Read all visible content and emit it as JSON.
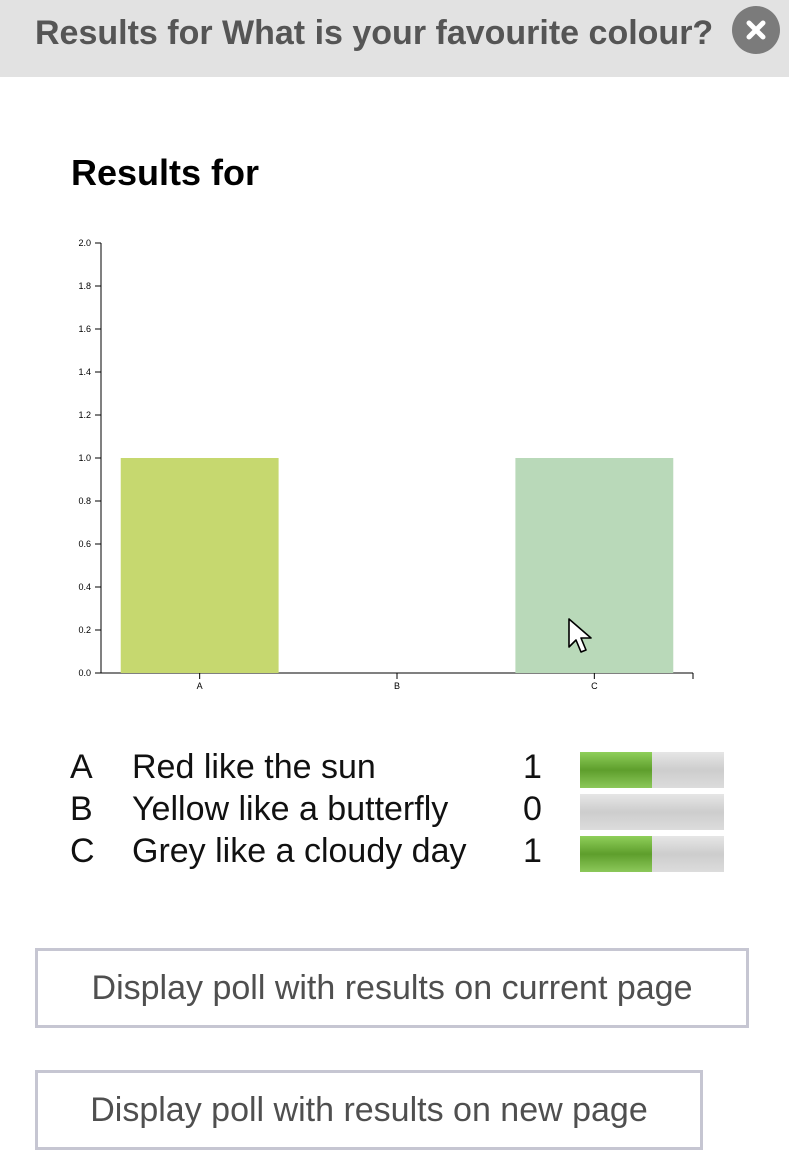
{
  "dialog": {
    "title": "Results for What is your favourite colour?",
    "close_icon": "close-icon"
  },
  "results_heading": "Results for",
  "chart_data": {
    "type": "bar",
    "categories": [
      "A",
      "B",
      "C"
    ],
    "values": [
      1,
      0,
      1
    ],
    "colors": [
      "#c6d86f",
      "#b9dbbb",
      "#b9d9b9"
    ],
    "ylim": [
      0,
      2.0
    ],
    "yticks": [
      "0.0",
      "0.2",
      "0.4",
      "0.6",
      "0.8",
      "1.0",
      "1.2",
      "1.4",
      "1.6",
      "1.8",
      "2.0"
    ],
    "title": "",
    "xlabel": "",
    "ylabel": "",
    "grid": false
  },
  "answers": [
    {
      "letter": "A",
      "text": "Red like the sun",
      "count": "1",
      "fraction": 0.5
    },
    {
      "letter": "B",
      "text": "Yellow like a butterfly",
      "count": "0",
      "fraction": 0
    },
    {
      "letter": "C",
      "text": "Grey like a cloudy day",
      "count": "1",
      "fraction": 0.5
    }
  ],
  "buttons": {
    "current_page": "Display poll with results on current page",
    "new_page": "Display poll with results on new page"
  },
  "colors": {
    "titlebar_bg": "#e2e2e2",
    "progress_fill": "#6aab34",
    "progress_track": "#d6d6d6",
    "button_border": "#c6c6d2"
  }
}
